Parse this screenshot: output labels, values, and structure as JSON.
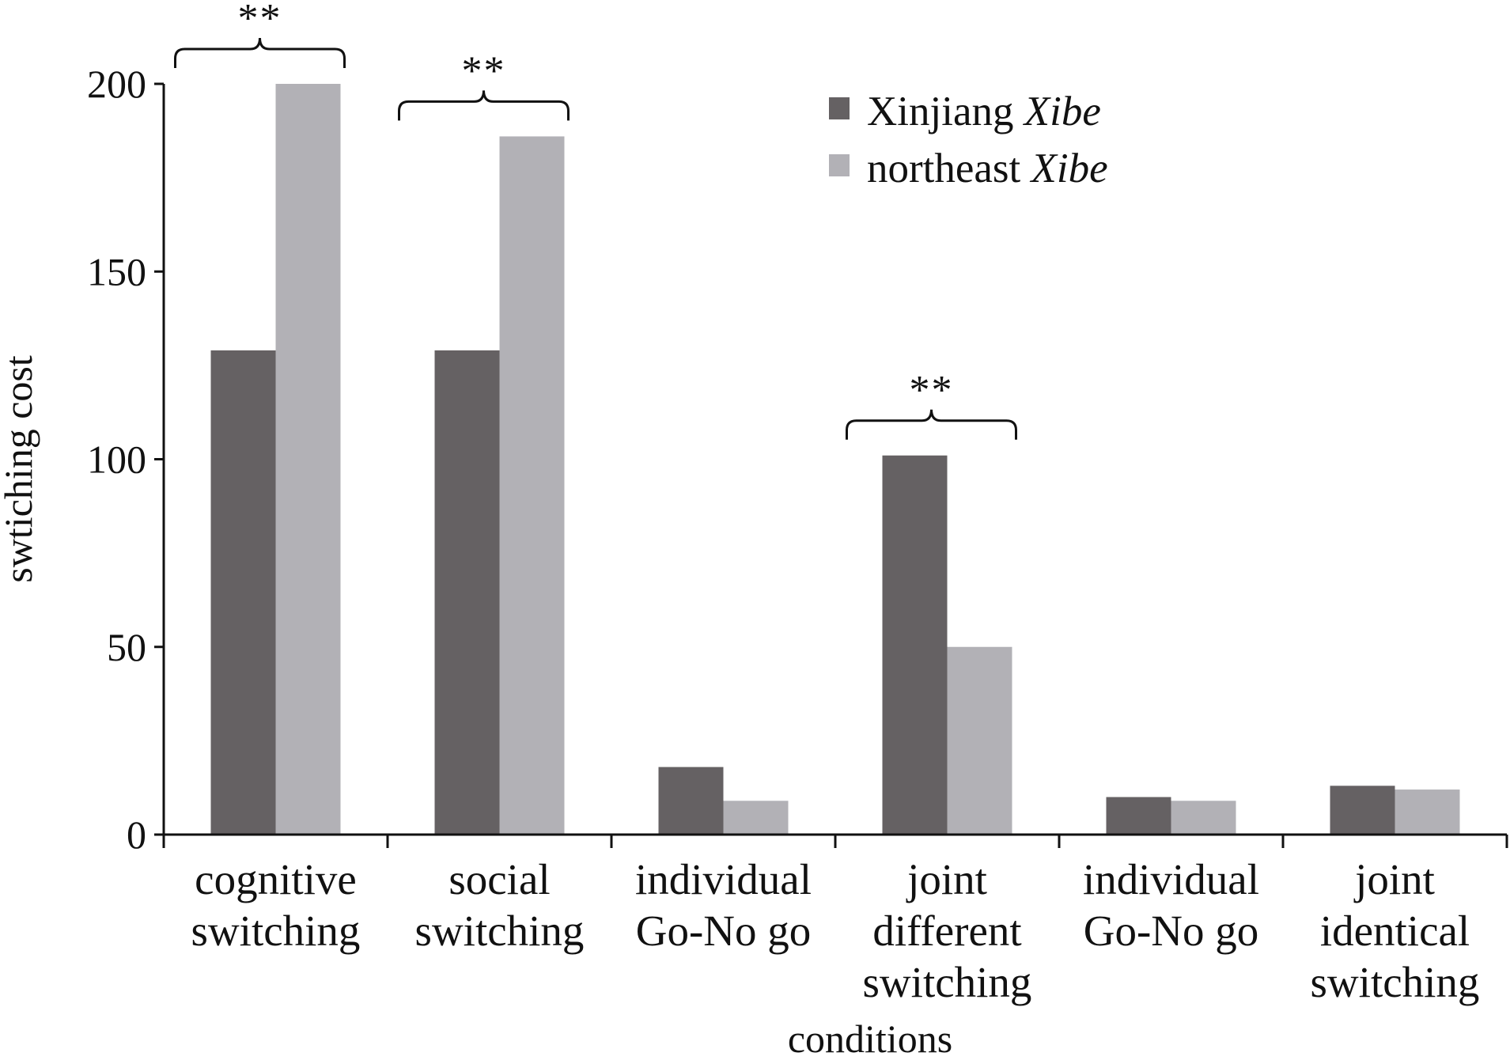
{
  "chart_data": {
    "type": "bar",
    "title": "",
    "xlabel": "conditions",
    "ylabel": "swtiching cost",
    "ylim": [
      0,
      200
    ],
    "yticks": [
      0,
      50,
      100,
      150,
      200
    ],
    "categories": [
      [
        "cognitive",
        "switching"
      ],
      [
        "social",
        "switching"
      ],
      [
        "individual",
        "Go-No go"
      ],
      [
        "joint",
        "different",
        "switching"
      ],
      [
        "individual",
        "Go-No go"
      ],
      [
        "joint",
        "identical",
        "switching"
      ]
    ],
    "series": [
      {
        "name": "Xinjiang",
        "name_italic": "Xibe",
        "color": "#656163",
        "values": [
          129,
          129,
          18,
          101,
          10,
          13
        ]
      },
      {
        "name": "northeast",
        "name_italic": "Xibe",
        "color": "#b2b1b6",
        "values": [
          200,
          186,
          9,
          50,
          9,
          12
        ]
      }
    ],
    "significance": [
      {
        "category_index": 0,
        "label": "**"
      },
      {
        "category_index": 1,
        "label": "**"
      },
      {
        "category_index": 3,
        "label": "**"
      }
    ],
    "legend_position": "top-right",
    "grid": false
  }
}
